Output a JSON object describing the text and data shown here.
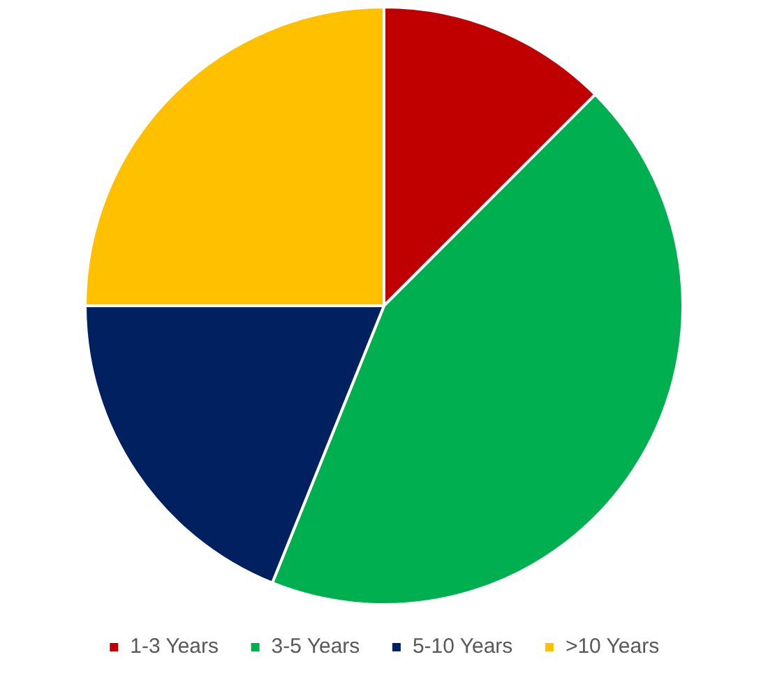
{
  "chart_data": {
    "type": "pie",
    "categories": [
      "1-3 Years",
      "3-5 Years",
      "5-10 Years",
      ">10 Years"
    ],
    "values": [
      12.5,
      43.6,
      18.9,
      25
    ],
    "colors": [
      "#c00000",
      "#00b050",
      "#002060",
      "#ffc000"
    ],
    "legend": "bottom"
  }
}
